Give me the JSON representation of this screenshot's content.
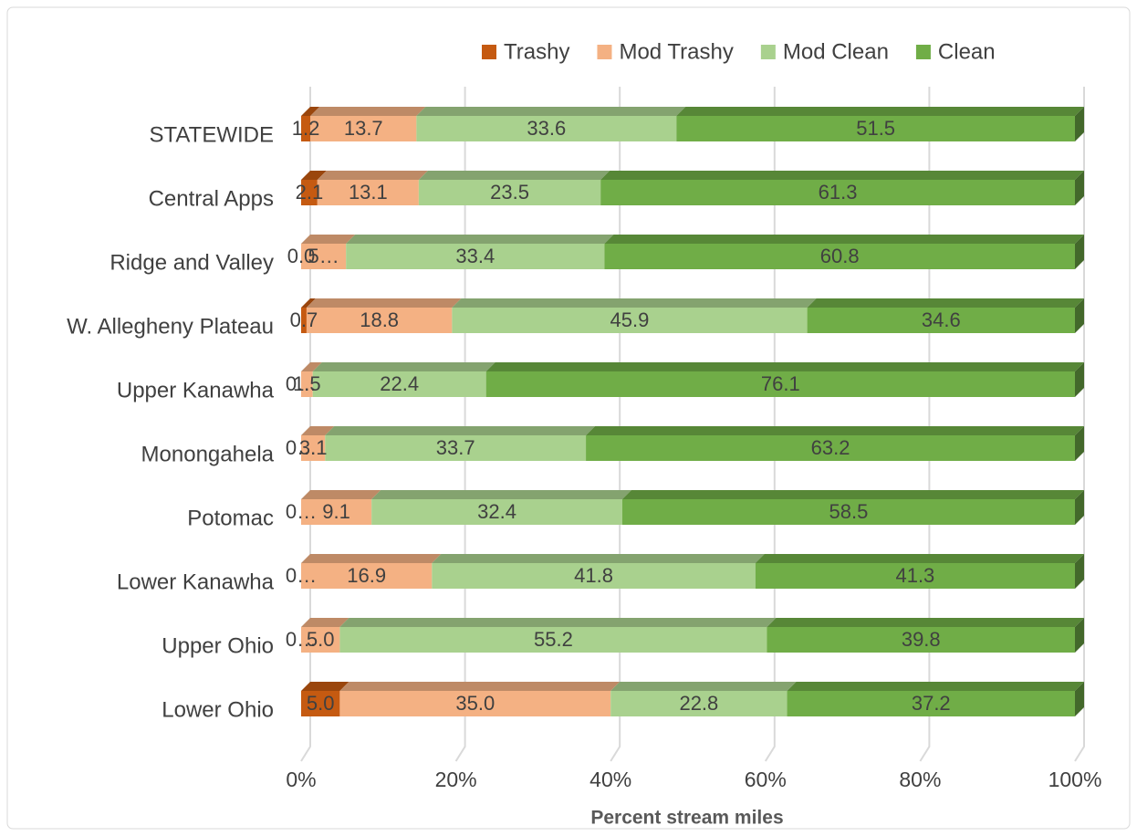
{
  "chart_data": {
    "type": "stacked-bar-horizontal",
    "xlabel": "Percent stream miles",
    "categories": [
      "STATEWIDE",
      "Central Apps",
      "Ridge and Valley",
      "W. Allegheny Plateau",
      "Upper Kanawha",
      "Monongahela",
      "Potomac",
      "Lower Kanawha",
      "Upper Ohio",
      "Lower Ohio"
    ],
    "series": [
      {
        "name": "Trashy",
        "color": "#c55a11",
        "values": [
          1.2,
          2.1,
          0.0,
          0.7,
          0.0,
          0.0,
          0.0,
          0.0,
          0.0,
          5.0
        ],
        "value_labels": [
          "1.2",
          "2.1",
          "0.0",
          "0.7",
          "0…",
          "0…",
          "0…",
          "0…",
          "0…",
          "5.0"
        ]
      },
      {
        "name": "Mod Trashy",
        "color": "#f4b183",
        "values": [
          13.7,
          13.1,
          5.8,
          18.8,
          1.5,
          3.1,
          9.1,
          16.9,
          5.0,
          35.0
        ],
        "value_labels": [
          "13.7",
          "13.1",
          "5…",
          "18.8",
          "1.5",
          "3.1",
          "9.1",
          "16.9",
          "5.0",
          "35.0"
        ]
      },
      {
        "name": "Mod Clean",
        "color": "#a9d18e",
        "values": [
          33.6,
          23.5,
          33.4,
          45.9,
          22.4,
          33.7,
          32.4,
          41.8,
          55.2,
          22.8
        ],
        "value_labels": [
          "33.6",
          "23.5",
          "33.4",
          "45.9",
          "22.4",
          "33.7",
          "32.4",
          "41.8",
          "55.2",
          "22.8"
        ]
      },
      {
        "name": "Clean",
        "color": "#70ad47",
        "values": [
          51.5,
          61.3,
          60.8,
          34.6,
          76.1,
          63.2,
          58.5,
          41.3,
          39.8,
          37.2
        ],
        "value_labels": [
          "51.5",
          "61.3",
          "60.8",
          "34.6",
          "76.1",
          "63.2",
          "58.5",
          "41.3",
          "39.8",
          "37.2"
        ]
      }
    ],
    "xlim": [
      0,
      100
    ],
    "xticks": [
      {
        "value": 0,
        "label": "0%"
      },
      {
        "value": 20,
        "label": "20%"
      },
      {
        "value": 40,
        "label": "40%"
      },
      {
        "value": 60,
        "label": "60%"
      },
      {
        "value": 80,
        "label": "80%"
      },
      {
        "value": 100,
        "label": "100%"
      }
    ],
    "grid": true,
    "legend": "top"
  }
}
